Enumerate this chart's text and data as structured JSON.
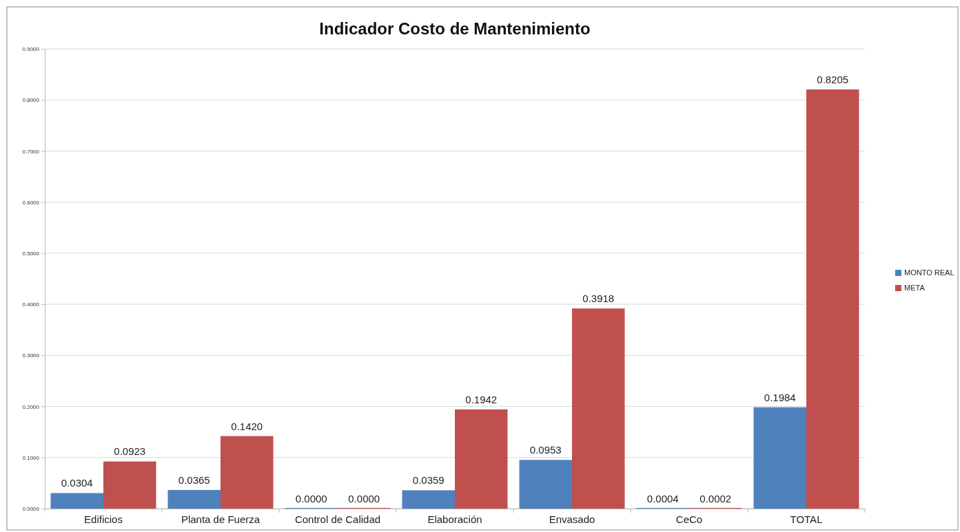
{
  "chart_data": {
    "type": "bar",
    "title": "Indicador Costo de Mantenimiento",
    "categories": [
      "Edificios",
      "Planta de Fuerza",
      "Control de Calidad",
      "Elaboración",
      "Envasado",
      "CeCo",
      "TOTAL"
    ],
    "series": [
      {
        "name": "MONTO REAL",
        "color": "#4f81bd",
        "values": [
          0.0304,
          0.0365,
          0.0,
          0.0359,
          0.0953,
          0.0004,
          0.1984
        ],
        "value_labels": [
          "0.0304",
          "0.0365",
          "0.0000",
          "0.0359",
          "0.0953",
          "0.0004",
          "0.1984"
        ]
      },
      {
        "name": "META",
        "color": "#c0504d",
        "values": [
          0.0923,
          0.142,
          0.0,
          0.1942,
          0.3918,
          0.0002,
          0.8205
        ],
        "value_labels": [
          "0.0923",
          "0.1420",
          "0.0000",
          "0.1942",
          "0.3918",
          "0.0002",
          "0.8205"
        ]
      }
    ],
    "ylim": [
      0,
      0.9
    ],
    "yticks": [
      {
        "value": 0,
        "label": "0.0000"
      },
      {
        "value": 0.1,
        "label": "0.1000"
      },
      {
        "value": 0.2,
        "label": "0.2000"
      },
      {
        "value": 0.3,
        "label": "0.3000"
      },
      {
        "value": 0.4,
        "label": "0.4000"
      },
      {
        "value": 0.5,
        "label": "0.5000"
      },
      {
        "value": 0.6,
        "label": "0.6000"
      },
      {
        "value": 0.7,
        "label": "0.7000"
      },
      {
        "value": 0.8,
        "label": "0.8000"
      },
      {
        "value": 0.9,
        "label": "0.9000"
      }
    ],
    "grid": "y",
    "legend": "right"
  }
}
